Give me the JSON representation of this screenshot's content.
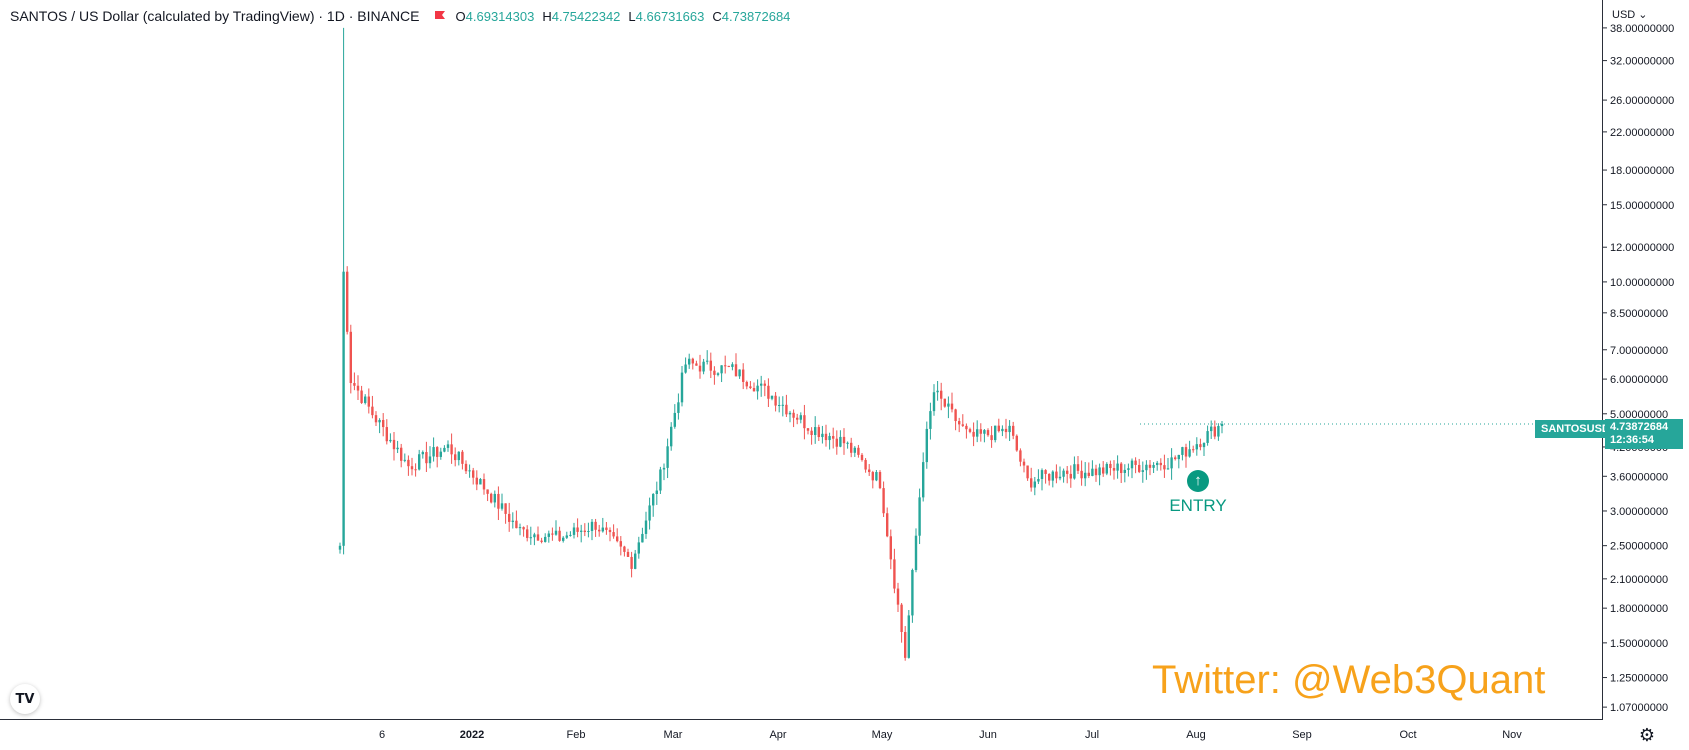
{
  "legend": {
    "title": "SANTOS / US Dollar (calculated by TradingView) · 1D · BINANCE",
    "open_key": "O",
    "open": "4.69314303",
    "high_key": "H",
    "high": "4.75422342",
    "low_key": "L",
    "low": "4.66731663",
    "close_key": "C",
    "close": "4.73872684"
  },
  "currency_selector": "USD",
  "price_axis": {
    "scale": "log",
    "min": 1.0,
    "max": 44.0,
    "ticks": [
      "38.00000000",
      "32.00000000",
      "26.00000000",
      "22.00000000",
      "18.00000000",
      "15.00000000",
      "12.00000000",
      "10.00000000",
      "8.50000000",
      "7.00000000",
      "6.00000000",
      "5.00000000",
      "4.20000000",
      "3.60000000",
      "3.00000000",
      "2.50000000",
      "2.10000000",
      "1.80000000",
      "1.50000000",
      "1.25000000",
      "1.07000000"
    ]
  },
  "time_axis": {
    "labels": [
      "6",
      "2022",
      "Feb",
      "Mar",
      "Apr",
      "May",
      "Jun",
      "Jul",
      "Aug",
      "Sep",
      "Oct",
      "Nov"
    ]
  },
  "last_price": {
    "symbol": "SANTOSUSD",
    "price": "4.73872684",
    "countdown": "12:36:54"
  },
  "annotation": {
    "label": "ENTRY",
    "icon": "arrow-up-circle-icon"
  },
  "watermark": "Twitter: @Web3Quant",
  "logo": "TV",
  "colors": {
    "up": "#26a69a",
    "down": "#ef5350",
    "watermark": "#f7a21b",
    "entry": "#089981"
  },
  "chart_data": {
    "type": "candlestick",
    "title": "SANTOS / US Dollar (calculated by TradingView) · 1D · BINANCE",
    "y_scale": "log",
    "ylim": [
      1.0,
      44.0
    ],
    "x_labels": [
      "6",
      "2022",
      "Feb",
      "Mar",
      "Apr",
      "May",
      "Jun",
      "Jul",
      "Aug",
      "Sep",
      "Oct",
      "Nov"
    ],
    "series": [
      {
        "name": "SANTOSUSD",
        "points": [
          {
            "date": "2021-12-06",
            "close": 2.5
          },
          {
            "date": "2021-12-07",
            "close": 10.5
          },
          {
            "date": "2021-12-09",
            "close": 6.0
          },
          {
            "date": "2021-12-15",
            "close": 5.0
          },
          {
            "date": "2021-12-25",
            "close": 3.8
          },
          {
            "date": "2022-01-05",
            "close": 4.2
          },
          {
            "date": "2022-01-15",
            "close": 3.4
          },
          {
            "date": "2022-01-25",
            "close": 2.7
          },
          {
            "date": "2022-02-05",
            "close": 2.6
          },
          {
            "date": "2022-02-15",
            "close": 2.8
          },
          {
            "date": "2022-02-25",
            "close": 2.3
          },
          {
            "date": "2022-03-05",
            "close": 3.6
          },
          {
            "date": "2022-03-12",
            "close": 6.5
          },
          {
            "date": "2022-03-25",
            "close": 6.3
          },
          {
            "date": "2022-04-05",
            "close": 5.5
          },
          {
            "date": "2022-04-15",
            "close": 4.7
          },
          {
            "date": "2022-04-25",
            "close": 4.3
          },
          {
            "date": "2022-05-05",
            "close": 3.5
          },
          {
            "date": "2022-05-12",
            "close": 1.4
          },
          {
            "date": "2022-05-17",
            "close": 4.0
          },
          {
            "date": "2022-05-20",
            "close": 5.6
          },
          {
            "date": "2022-05-30",
            "close": 4.4
          },
          {
            "date": "2022-06-10",
            "close": 4.6
          },
          {
            "date": "2022-06-15",
            "close": 3.5
          },
          {
            "date": "2022-06-25",
            "close": 3.7
          },
          {
            "date": "2022-07-05",
            "close": 3.7
          },
          {
            "date": "2022-07-15",
            "close": 3.8
          },
          {
            "date": "2022-07-25",
            "close": 3.9
          },
          {
            "date": "2022-08-01",
            "close": 4.3
          },
          {
            "date": "2022-08-08",
            "close": 4.74
          }
        ]
      }
    ]
  }
}
